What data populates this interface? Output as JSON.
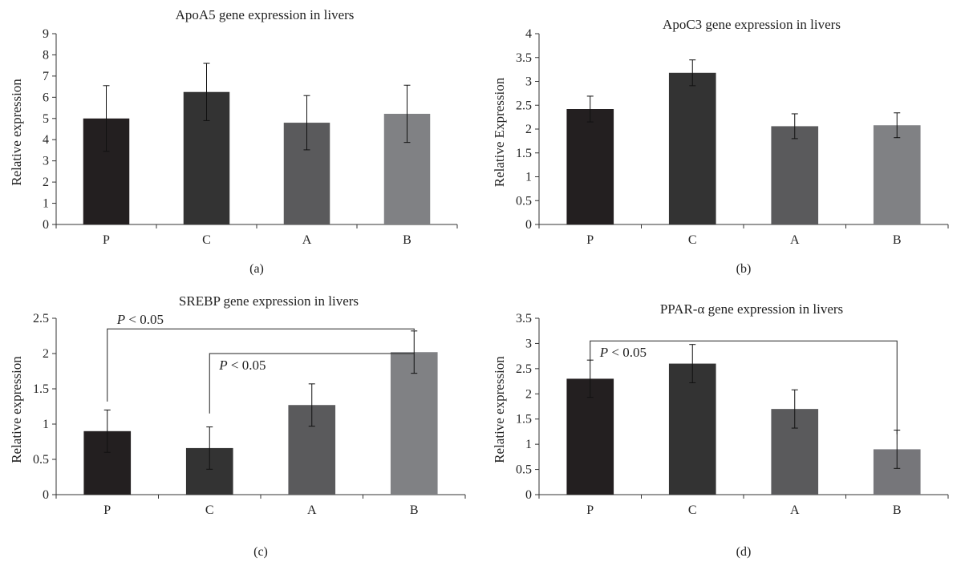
{
  "chart_data": [
    {
      "type": "bar",
      "title": "ApoA5 gene expression in livers",
      "ylabel": "Relative expression",
      "subcaption": "(a)",
      "categories": [
        "P",
        "C",
        "A",
        "B"
      ],
      "values": [
        5.0,
        6.25,
        4.8,
        5.22
      ],
      "errors": [
        1.55,
        1.35,
        1.28,
        1.35
      ],
      "colors": [
        "#231f20",
        "#333333",
        "#5a5a5c",
        "#808184"
      ],
      "ylim": [
        0,
        9
      ],
      "yticks": [
        0,
        1,
        2,
        3,
        4,
        5,
        6,
        7,
        8,
        9
      ],
      "ytick_labels": [
        "0",
        "1",
        "2",
        "3",
        "4",
        "5",
        "6",
        "7",
        "8",
        "9"
      ],
      "grid": false,
      "annotations": []
    },
    {
      "type": "bar",
      "title": "ApoC3 gene expression in livers",
      "ylabel": "Relative Expression",
      "subcaption": "(b)",
      "categories": [
        "P",
        "C",
        "A",
        "B"
      ],
      "values": [
        2.42,
        3.18,
        2.06,
        2.08
      ],
      "errors": [
        0.27,
        0.27,
        0.26,
        0.26
      ],
      "colors": [
        "#231f20",
        "#333333",
        "#5a5a5c",
        "#808184"
      ],
      "ylim": [
        0,
        4
      ],
      "yticks": [
        0,
        0.5,
        1,
        1.5,
        2,
        2.5,
        3,
        3.5,
        4
      ],
      "ytick_labels": [
        "0",
        "0.5",
        "1",
        "1.5",
        "2",
        "2.5",
        "3",
        "3.5",
        "4"
      ],
      "grid": false,
      "annotations": []
    },
    {
      "type": "bar",
      "title": "SREBP gene expression in livers",
      "ylabel": "Relative expression",
      "subcaption": "(c)",
      "categories": [
        "P",
        "C",
        "A",
        "B"
      ],
      "values": [
        0.9,
        0.66,
        1.27,
        2.02
      ],
      "errors": [
        0.3,
        0.3,
        0.3,
        0.3
      ],
      "colors": [
        "#231f20",
        "#333333",
        "#5a5a5c",
        "#808184"
      ],
      "ylim": [
        0,
        2.5
      ],
      "yticks": [
        0,
        0.5,
        1,
        1.5,
        2,
        2.5
      ],
      "ytick_labels": [
        "0",
        "0.5",
        "1",
        "1.5",
        "2",
        "2.5"
      ],
      "grid": false,
      "annotations": [
        {
          "from": "P",
          "to": "B",
          "level": 2.35,
          "left_drop": 1.32,
          "right_drop": 2.33,
          "p_italic": "P",
          "rest": " < 0.05",
          "text_at": 2.42
        },
        {
          "from": "C",
          "to": "B",
          "level": 2.0,
          "left_drop": 1.15,
          "right_drop": 2.0,
          "p_italic": "P",
          "rest": " < 0.05",
          "text_at": 1.77
        }
      ]
    },
    {
      "type": "bar",
      "title": "PPAR-α gene expression in livers",
      "ylabel": "Relative expression",
      "subcaption": "(d)",
      "categories": [
        "P",
        "C",
        "A",
        "B"
      ],
      "values": [
        2.3,
        2.6,
        1.7,
        0.9
      ],
      "errors": [
        0.37,
        0.38,
        0.38,
        0.38
      ],
      "colors": [
        "#231f20",
        "#333333",
        "#5a5a5c",
        "#76767a"
      ],
      "ylim": [
        0,
        3.5
      ],
      "yticks": [
        0,
        0.5,
        1,
        1.5,
        2,
        2.5,
        3,
        3.5
      ],
      "ytick_labels": [
        "0",
        "0.5",
        "1",
        "1.5",
        "2",
        "2.5",
        "3",
        "3.5"
      ],
      "grid": false,
      "annotations": [
        {
          "from": "P",
          "to": "B",
          "level": 3.05,
          "left_drop": 2.65,
          "right_drop": 1.2,
          "p_italic": "P",
          "rest": " < 0.05",
          "text_at": 2.74
        }
      ]
    }
  ]
}
